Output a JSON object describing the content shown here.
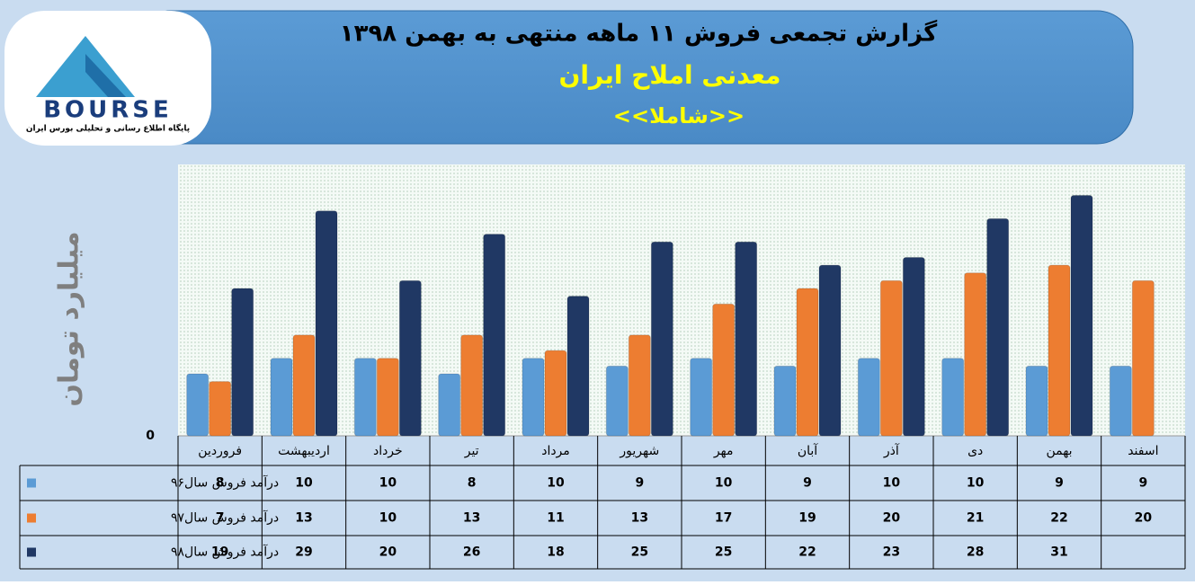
{
  "header": {
    "title": "گزارش تجمعی فروش  ۱۱ ماهه منتهی به بهمن ۱۳۹۸",
    "company": "معدنی املاح ایران",
    "symbol": "<<شاملا>>"
  },
  "logo": {
    "name": "BOURSE",
    "tagline": "پایگاه اطلاع رسانی و تحلیلی بورس ایران"
  },
  "chart_data": {
    "type": "bar",
    "y_label": "میلیارد تومان",
    "categories": [
      "فروردین",
      "اردیبهشت",
      "خرداد",
      "تیر",
      "مرداد",
      "شهریور",
      "مهر",
      "آبان",
      "آذر",
      "دی",
      "بهمن",
      "اسفند"
    ],
    "series": [
      {
        "name": "درآمد فروش سال۹۶",
        "color": "#5b9bd5",
        "values": [
          8,
          10,
          10,
          8,
          10,
          9,
          10,
          9,
          10,
          10,
          9,
          9
        ]
      },
      {
        "name": "درآمد فروش سال۹۷",
        "color": "#ed7d31",
        "values": [
          7,
          13,
          10,
          13,
          11,
          13,
          17,
          19,
          20,
          21,
          22,
          20
        ]
      },
      {
        "name": "درآمد فروش سال۹۸",
        "color": "#203864",
        "values": [
          19,
          29,
          20,
          26,
          18,
          25,
          25,
          22,
          23,
          28,
          31,
          null
        ]
      }
    ],
    "ylim": [
      0,
      35
    ],
    "yticks": [
      0
    ]
  }
}
